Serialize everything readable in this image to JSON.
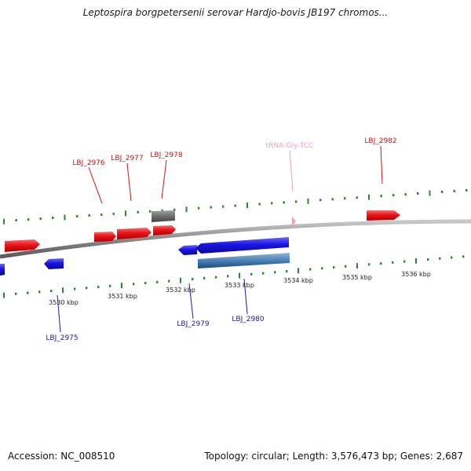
{
  "title": "Leptospira borgpetersenii serovar Hardjo-bovis JB197 chromos...",
  "accession_label": "Accession: NC_008510",
  "summary_label": "Topology: circular; Length: 3,576,473 bp; Genes: 2,687",
  "colors": {
    "forward_gene": "#e8141a",
    "reverse_gene": "#1a14e6",
    "forward_label": "#cc1111",
    "reverse_label": "#1a1aa6",
    "trna": "#f29ac8",
    "pseudogene": "#6e6e6e",
    "reverse_misc": "#4a7fb5",
    "tick": "#2a8a2a",
    "backbone": "#8a8a8a"
  },
  "scale": {
    "unit": "kbp",
    "labels": [
      {
        "text": "3530 kbp"
      },
      {
        "text": "3531 kbp"
      },
      {
        "text": "3532 kbp"
      },
      {
        "text": "3533 kbp"
      },
      {
        "text": "3534 kbp"
      },
      {
        "text": "3535 kbp"
      },
      {
        "text": "3536 kbp"
      }
    ]
  },
  "features": [
    {
      "label": "LBJ_2975",
      "strand": "reverse"
    },
    {
      "label": "LBJ_2976",
      "strand": "forward"
    },
    {
      "label": "LBJ_2977",
      "strand": "forward"
    },
    {
      "label": "LBJ_2978",
      "strand": "forward"
    },
    {
      "label": "LBJ_2979",
      "strand": "reverse"
    },
    {
      "label": "LBJ_2980",
      "strand": "reverse"
    },
    {
      "label": "tRNA-Gly-TCC",
      "strand": "forward"
    },
    {
      "label": "LBJ_2982",
      "strand": "forward"
    }
  ]
}
